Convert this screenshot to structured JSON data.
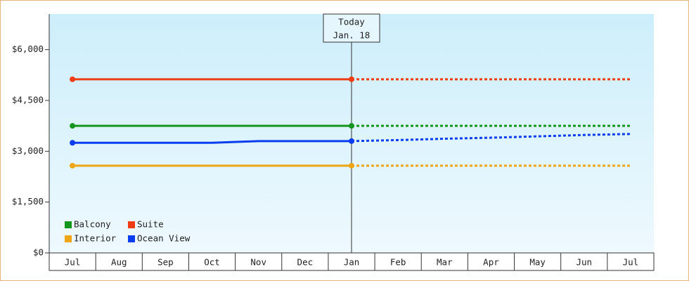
{
  "chart_data": {
    "type": "line",
    "categories": [
      "Jul",
      "Aug",
      "Sep",
      "Oct",
      "Nov",
      "Dec",
      "Jan",
      "Feb",
      "Mar",
      "Apr",
      "May",
      "Jun",
      "Jul"
    ],
    "today_index": 6,
    "annotation": [
      "Today",
      "Jan. 18"
    ],
    "series": [
      {
        "name": "Balcony",
        "color": "#14961e",
        "values": [
          3750,
          3750,
          3750,
          3750,
          3750,
          3750,
          3750,
          3750,
          3750,
          3750,
          3750,
          3750,
          3750
        ]
      },
      {
        "name": "Suite",
        "color": "#f03c14",
        "values": [
          5125,
          5125,
          5125,
          5125,
          5125,
          5125,
          5125,
          5125,
          5125,
          5125,
          5125,
          5125,
          5125
        ]
      },
      {
        "name": "Interior",
        "color": "#f0a514",
        "values": [
          2575,
          2575,
          2575,
          2575,
          2575,
          2575,
          2575,
          2575,
          2575,
          2575,
          2575,
          2575,
          2575
        ]
      },
      {
        "name": "Ocean View",
        "color": "#0a3cf0",
        "values": [
          3250,
          3250,
          3250,
          3250,
          3300,
          3300,
          3300,
          3330,
          3370,
          3400,
          3440,
          3480,
          3510
        ]
      }
    ],
    "ylim": [
      0,
      7050
    ],
    "yticks": [
      {
        "value": 0,
        "label": "$0"
      },
      {
        "value": 1500,
        "label": "$1,500"
      },
      {
        "value": 3000,
        "label": "$3,000"
      },
      {
        "value": 4500,
        "label": "$4,500"
      },
      {
        "value": 6000,
        "label": "$6,000"
      }
    ],
    "legend": "lower left"
  }
}
